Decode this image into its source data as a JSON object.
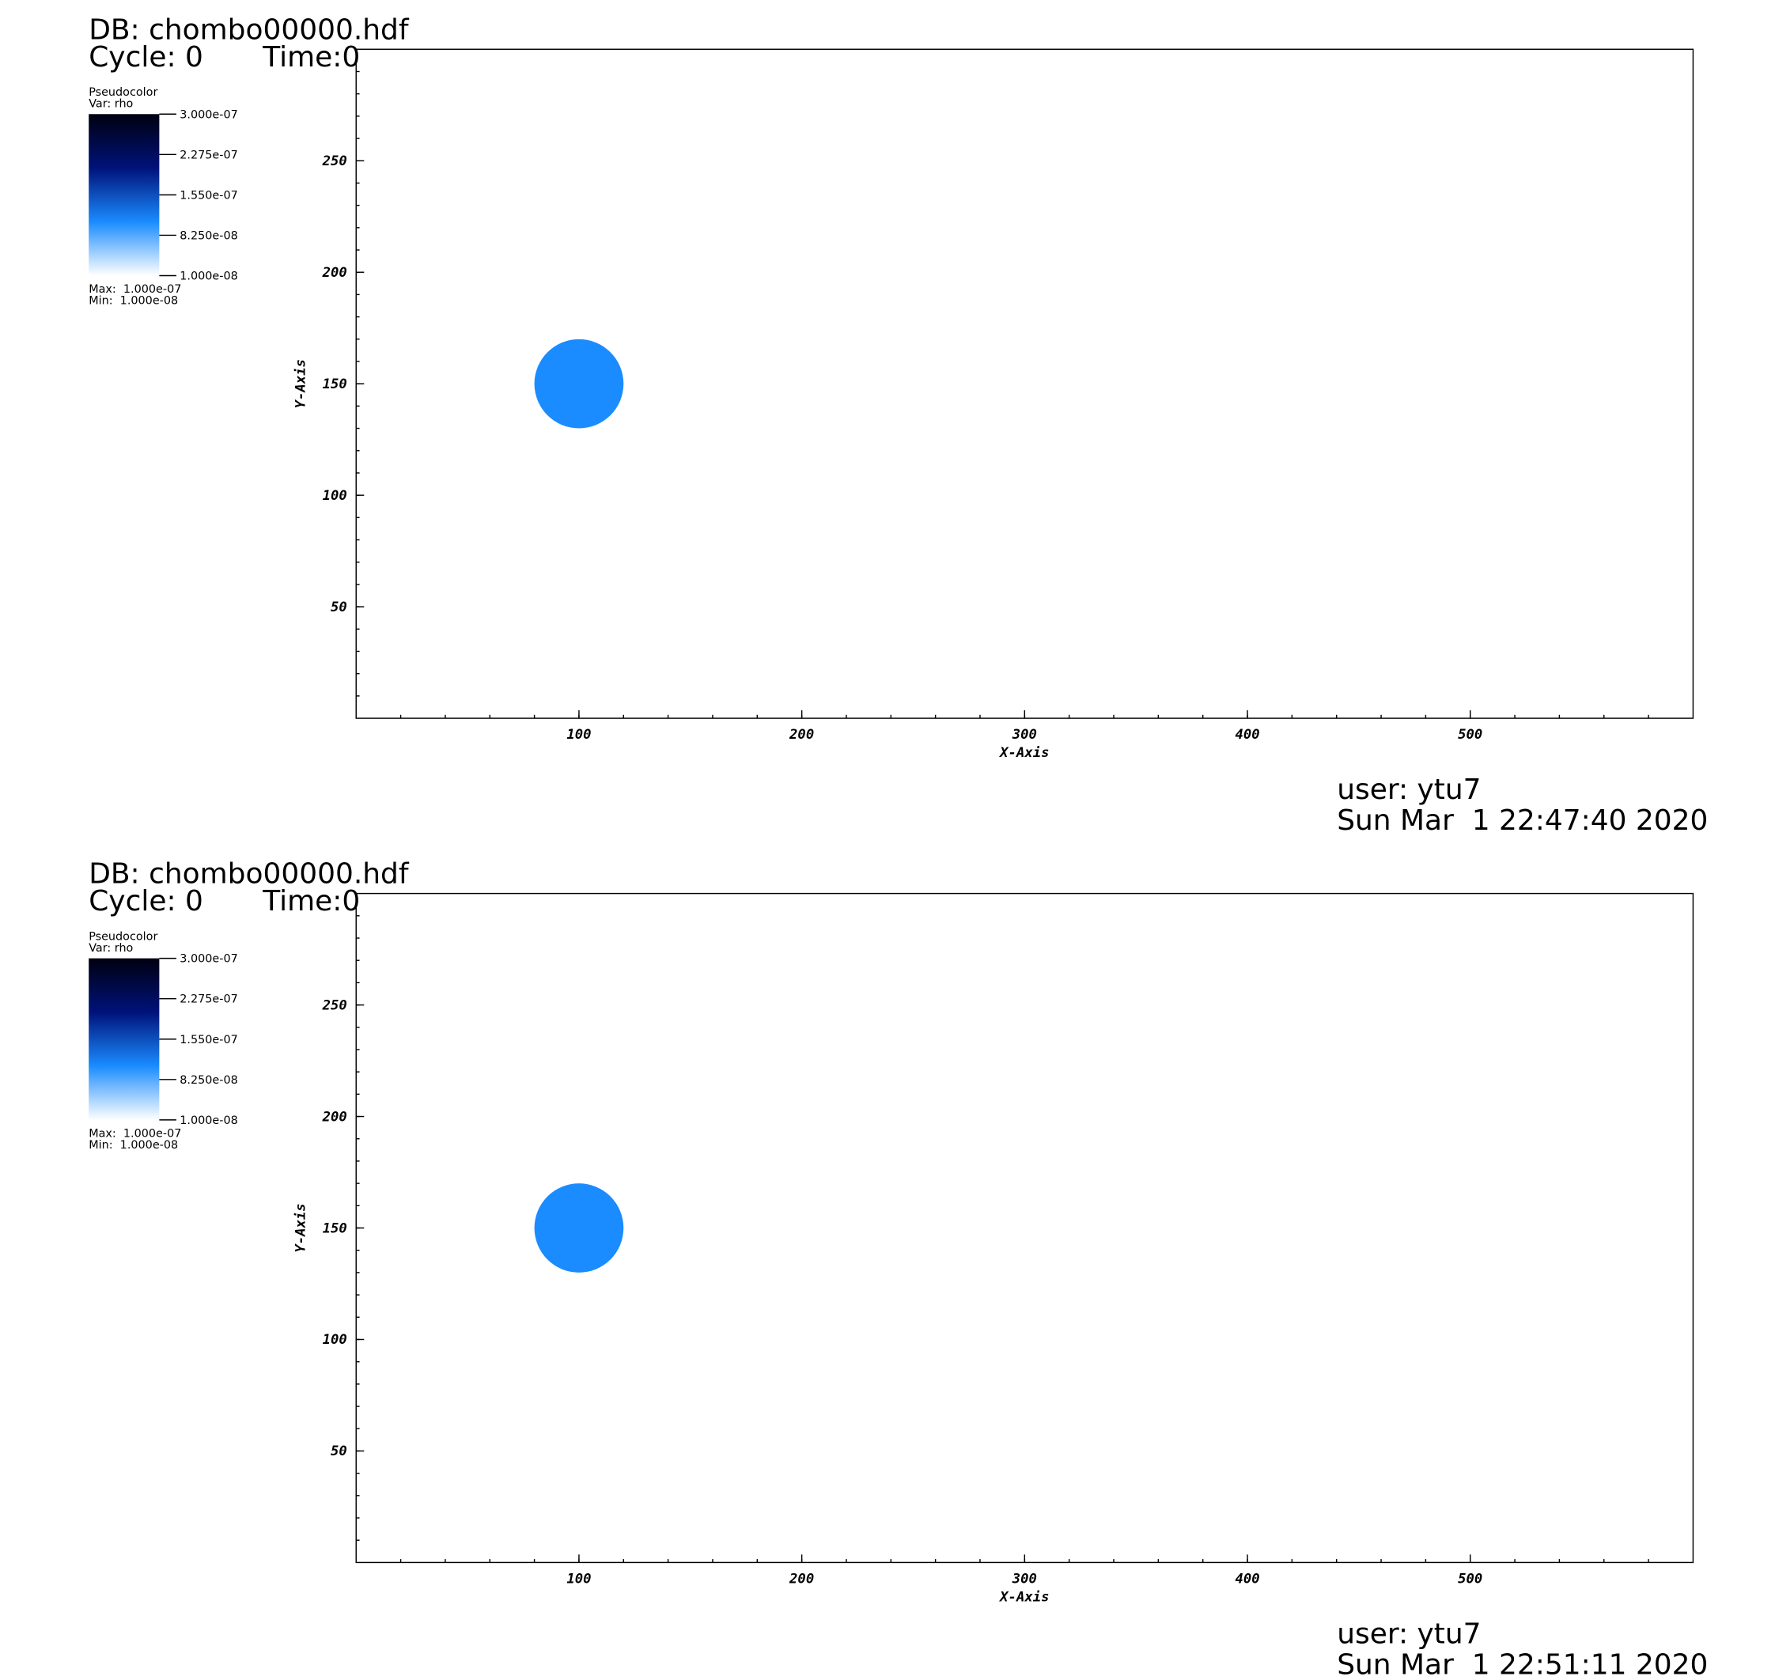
{
  "chart_data": [
    {
      "type": "pseudocolor",
      "title": "DB: chombo00000.hdf",
      "cycle": "Cycle: 0",
      "time": "Time:0",
      "legend_title": "Pseudocolor",
      "legend_var": "Var: rho",
      "max_label": "Max:  1.000e-07",
      "min_label": "Min:  1.000e-08",
      "user": "user: ytu7",
      "date": "Sun Mar  1 22:47:40 2020",
      "xlabel": "X-Axis",
      "ylabel": "Y-Axis",
      "xlim": [
        0,
        600
      ],
      "ylim": [
        0,
        300
      ],
      "xticks": [
        100,
        200,
        300,
        400,
        500
      ],
      "yticks": [
        50,
        100,
        150,
        200,
        250
      ],
      "x": [
        100
      ],
      "values": [
        150
      ],
      "radius": [
        20
      ],
      "color": "#1a8cff",
      "colorbar": {
        "lim": [
          1e-08,
          3e-07
        ],
        "colors": [
          "#ffffff",
          "#1a8cff",
          "#00127a",
          "#000010"
        ],
        "ticks": [
          {
            "value": 3e-07,
            "label": "3.000e-07"
          },
          {
            "value": 2.275e-07,
            "label": "2.275e-07"
          },
          {
            "value": 1.55e-07,
            "label": "1.550e-07"
          },
          {
            "value": 8.25e-08,
            "label": "8.250e-08"
          },
          {
            "value": 1e-08,
            "label": "1.000e-08"
          }
        ]
      }
    },
    {
      "type": "pseudocolor",
      "title": "DB: chombo00000.hdf",
      "cycle": "Cycle: 0",
      "time": "Time:0",
      "legend_title": "Pseudocolor",
      "legend_var": "Var: rho",
      "max_label": "Max:  1.000e-07",
      "min_label": "Min:  1.000e-08",
      "user": "user: ytu7",
      "date": "Sun Mar  1 22:51:11 2020",
      "xlabel": "X-Axis",
      "ylabel": "Y-Axis",
      "xlim": [
        0,
        600
      ],
      "ylim": [
        0,
        300
      ],
      "xticks": [
        100,
        200,
        300,
        400,
        500
      ],
      "yticks": [
        50,
        100,
        150,
        200,
        250
      ],
      "x": [
        100
      ],
      "values": [
        150
      ],
      "radius": [
        20
      ],
      "color": "#1a8cff",
      "colorbar": {
        "lim": [
          1e-08,
          3e-07
        ],
        "colors": [
          "#ffffff",
          "#1a8cff",
          "#00127a",
          "#000010"
        ],
        "ticks": [
          {
            "value": 3e-07,
            "label": "3.000e-07"
          },
          {
            "value": 2.275e-07,
            "label": "2.275e-07"
          },
          {
            "value": 1.55e-07,
            "label": "1.550e-07"
          },
          {
            "value": 8.25e-08,
            "label": "8.250e-08"
          },
          {
            "value": 1e-08,
            "label": "1.000e-08"
          }
        ]
      }
    }
  ]
}
